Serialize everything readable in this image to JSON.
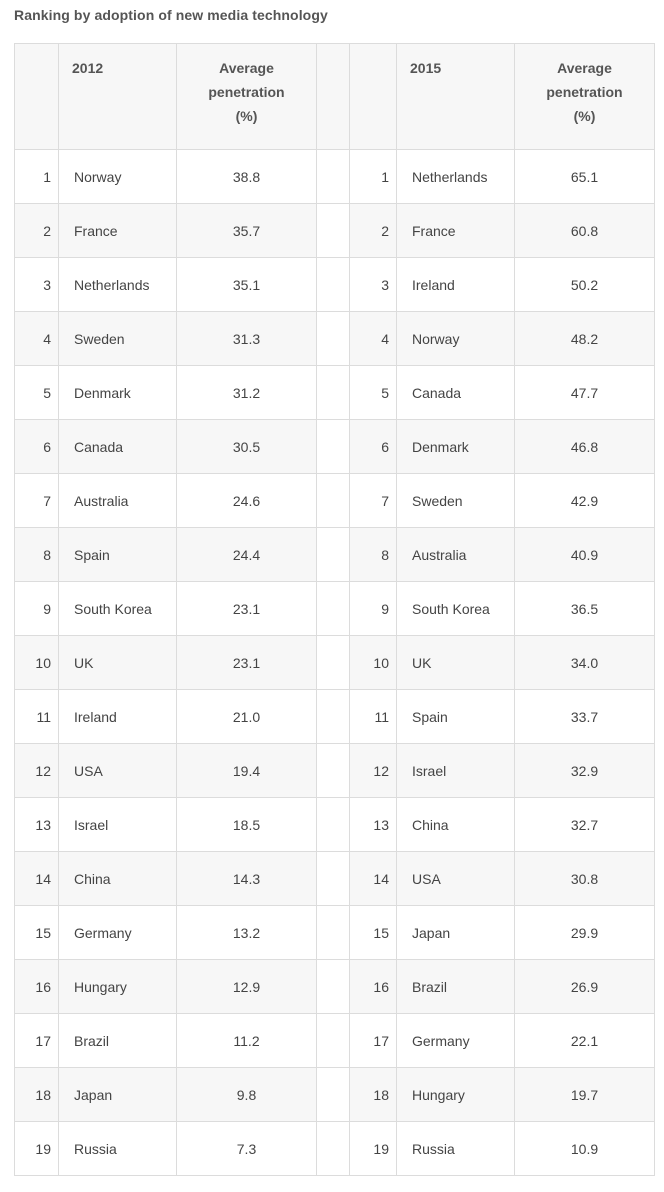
{
  "title": "Ranking by adoption of new media technology",
  "header": {
    "year_left": "2012",
    "year_right": "2015",
    "avg_line1": "Average",
    "avg_line2": "penetration",
    "avg_line3": "(%)"
  },
  "rows": [
    {
      "rank": "1",
      "c2012": "Norway",
      "v2012": "38.8",
      "c2015": "Netherlands",
      "v2015": "65.1"
    },
    {
      "rank": "2",
      "c2012": "France",
      "v2012": "35.7",
      "c2015": "France",
      "v2015": "60.8"
    },
    {
      "rank": "3",
      "c2012": "Netherlands",
      "v2012": "35.1",
      "c2015": "Ireland",
      "v2015": "50.2"
    },
    {
      "rank": "4",
      "c2012": "Sweden",
      "v2012": "31.3",
      "c2015": "Norway",
      "v2015": "48.2"
    },
    {
      "rank": "5",
      "c2012": "Denmark",
      "v2012": "31.2",
      "c2015": "Canada",
      "v2015": "47.7"
    },
    {
      "rank": "6",
      "c2012": "Canada",
      "v2012": "30.5",
      "c2015": "Denmark",
      "v2015": "46.8"
    },
    {
      "rank": "7",
      "c2012": "Australia",
      "v2012": "24.6",
      "c2015": "Sweden",
      "v2015": "42.9"
    },
    {
      "rank": "8",
      "c2012": "Spain",
      "v2012": "24.4",
      "c2015": "Australia",
      "v2015": "40.9"
    },
    {
      "rank": "9",
      "c2012": "South Korea",
      "v2012": "23.1",
      "c2015": "South Korea",
      "v2015": "36.5"
    },
    {
      "rank": "10",
      "c2012": "UK",
      "v2012": "23.1",
      "c2015": "UK",
      "v2015": "34.0"
    },
    {
      "rank": "11",
      "c2012": "Ireland",
      "v2012": "21.0",
      "c2015": "Spain",
      "v2015": "33.7"
    },
    {
      "rank": "12",
      "c2012": "USA",
      "v2012": "19.4",
      "c2015": "Israel",
      "v2015": "32.9"
    },
    {
      "rank": "13",
      "c2012": "Israel",
      "v2012": "18.5",
      "c2015": "China",
      "v2015": "32.7"
    },
    {
      "rank": "14",
      "c2012": "China",
      "v2012": "14.3",
      "c2015": "USA",
      "v2015": "30.8"
    },
    {
      "rank": "15",
      "c2012": "Germany",
      "v2012": "13.2",
      "c2015": "Japan",
      "v2015": "29.9"
    },
    {
      "rank": "16",
      "c2012": "Hungary",
      "v2012": "12.9",
      "c2015": "Brazil",
      "v2015": "26.9"
    },
    {
      "rank": "17",
      "c2012": "Brazil",
      "v2012": "11.2",
      "c2015": "Germany",
      "v2015": "22.1"
    },
    {
      "rank": "18",
      "c2012": "Japan",
      "v2012": "9.8",
      "c2015": "Hungary",
      "v2015": "19.7"
    },
    {
      "rank": "19",
      "c2012": "Russia",
      "v2012": "7.3",
      "c2015": "Russia",
      "v2015": "10.9"
    }
  ]
}
